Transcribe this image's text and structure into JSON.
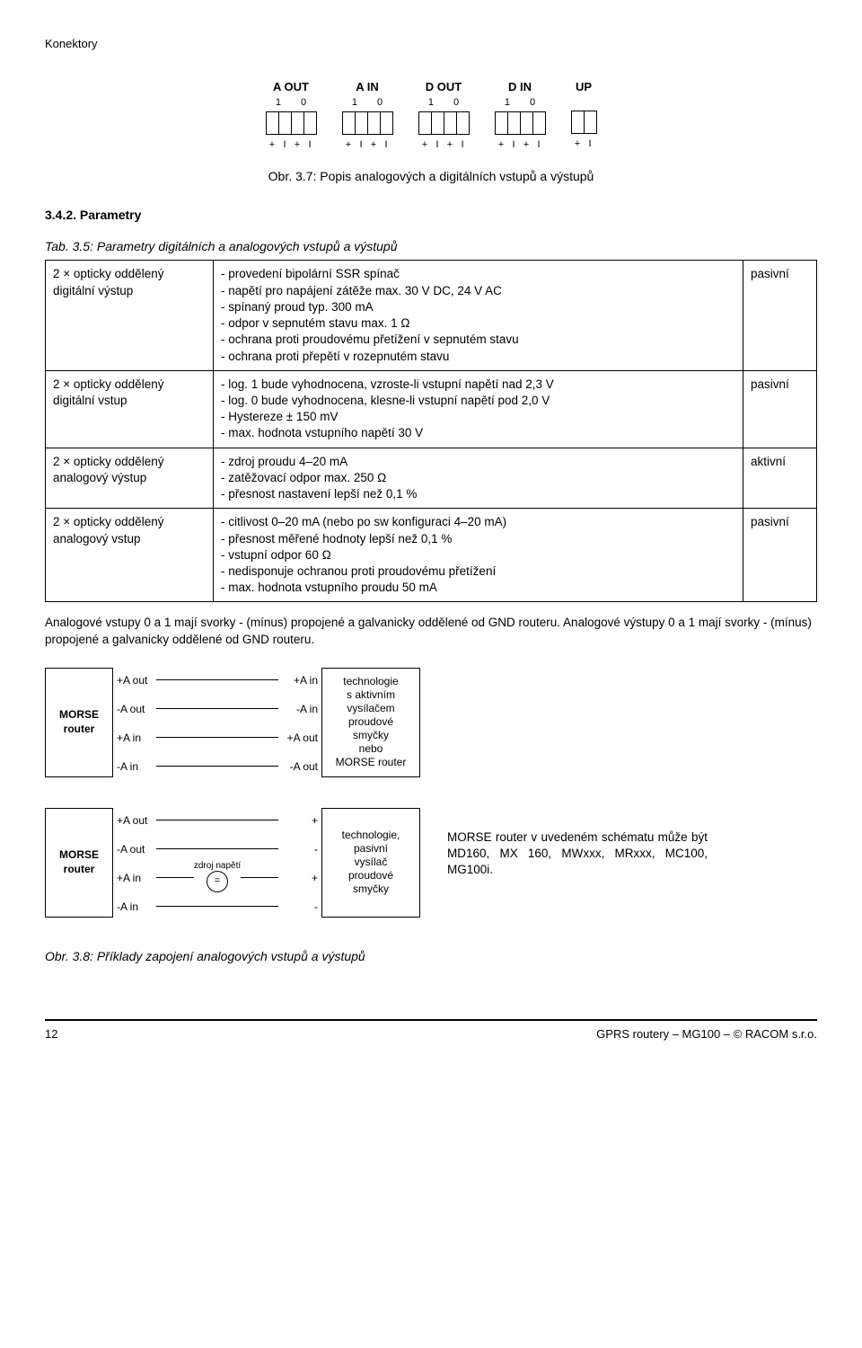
{
  "header": {
    "title": "Konektory"
  },
  "connectors": {
    "blocks": [
      {
        "title": "A OUT",
        "subs": [
          "1",
          "0"
        ],
        "cells": 4,
        "labels": [
          "+",
          "I",
          "+",
          "I"
        ]
      },
      {
        "title": "A IN",
        "subs": [
          "1",
          "0"
        ],
        "cells": 4,
        "labels": [
          "+",
          "I",
          "+",
          "I"
        ]
      },
      {
        "title": "D OUT",
        "subs": [
          "1",
          "0"
        ],
        "cells": 4,
        "labels": [
          "+",
          "I",
          "+",
          "I"
        ]
      },
      {
        "title": "D IN",
        "subs": [
          "1",
          "0"
        ],
        "cells": 4,
        "labels": [
          "+",
          "I",
          "+",
          "I"
        ]
      },
      {
        "title": "UP",
        "subs": [],
        "cells": 2,
        "labels": [
          "+",
          "I"
        ]
      }
    ],
    "caption": "Obr. 3.7: Popis analogových a digitálních vstupů a výstupů"
  },
  "parameters": {
    "section_title": "3.4.2. Parametry",
    "table_caption": "Tab. 3.5: Parametry digitálních a analogových vstupů a výstupů",
    "rows": [
      {
        "name": "2 × opticky oddělený digitální výstup",
        "items": [
          "provedení bipolární SSR spínač",
          "napětí pro napájení zátěže max. 30 V DC, 24 V AC",
          "spínaný proud typ. 300 mA",
          "odpor v sepnutém stavu max. 1 Ω",
          "ochrana proti proudovému přetížení v sepnutém stavu",
          "ochrana proti přepětí v rozepnutém stavu"
        ],
        "mode": "pasivní"
      },
      {
        "name": "2 × opticky oddělený digitální vstup",
        "items": [
          "log. 1 bude vyhodnocena, vzroste-li vstupní napětí nad 2,3 V",
          "log. 0 bude vyhodnocena, klesne-li vstupní napětí pod 2,0 V",
          "Hystereze ± 150 mV",
          "max. hodnota vstupního napětí 30 V"
        ],
        "mode": "pasivní"
      },
      {
        "name": "2 × opticky oddělený analogový výstup",
        "items": [
          "zdroj proudu 4–20 mA",
          "zatěžovací odpor max. 250 Ω",
          "přesnost nastavení lepší než 0,1 %"
        ],
        "mode": "aktivní"
      },
      {
        "name": "2 × opticky oddělený analogový vstup",
        "items": [
          "citlivost 0–20 mA (nebo po sw konfiguraci 4–20 mA)",
          "přesnost měřené hodnoty lepší než 0,1 %",
          "vstupní odpor 60 Ω",
          "nedisponuje ochranou proti proudovému přetížení",
          "max. hodnota vstupního proudu 50 mA"
        ],
        "mode": "pasivní"
      }
    ]
  },
  "paragraph": "Analogové vstupy 0 a 1 mají svorky - (mínus) propojené a galvanicky oddělené od GND routeru. Analogové výstupy 0 a 1 mají svorky - (mínus) propojené a galvanicky oddělené od GND routeru.",
  "schematic1": {
    "left_box": "MORSE\nrouter",
    "wires": [
      {
        "l": "+A out",
        "r": "+A in"
      },
      {
        "l": "-A out",
        "r": "-A in"
      },
      {
        "l": "+A in",
        "r": "+A out"
      },
      {
        "l": "-A in",
        "r": "-A out"
      }
    ],
    "right_box": "technologie\ns aktivním\nvysílačem\nproudové\nsmyčky\nnebo\nMORSE router"
  },
  "schematic2": {
    "left_box": "MORSE\nrouter",
    "wires_top": [
      {
        "l": "+A out",
        "r": "+"
      },
      {
        "l": "-A out",
        "r": "-"
      }
    ],
    "wires_bot": [
      {
        "l": "+A in",
        "r": "+",
        "source": true,
        "source_label": "zdroj napětí",
        "source_glyph": "+  =  -"
      },
      {
        "l": "-A in",
        "r": "-"
      }
    ],
    "right_box": "technologie,\npasivní\nvysílač\nproudové\nsmyčky",
    "right_text": "MORSE router v uvedeném schématu může být MD160, MX 160, MWxxx, MRxxx, MC100, MG100i."
  },
  "fig_caption": "Obr. 3.8: Příklady zapojení analogových vstupů a výstupů",
  "footer": {
    "page": "12",
    "right": "GPRS routery – MG100 – © RACOM s.r.o."
  }
}
